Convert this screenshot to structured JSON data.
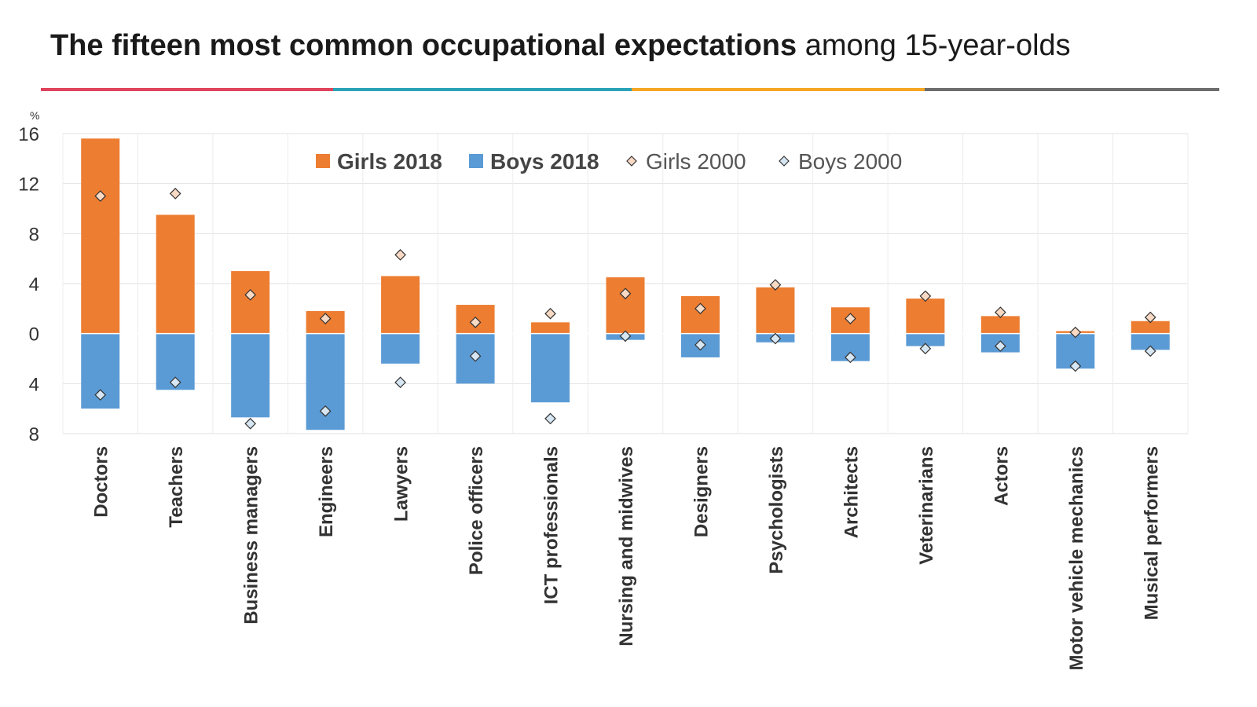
{
  "title": {
    "bold": "The fifteen most common occupational expectations",
    "normal": " among 15-year-olds"
  },
  "rule_colors": [
    "#e0435c",
    "#2aa3b8",
    "#f5a623",
    "#6d6d6d"
  ],
  "chart_data": {
    "type": "bar",
    "unit_label": "%",
    "categories": [
      "Doctors",
      "Teachers",
      "Business managers",
      "Engineers",
      "Lawyers",
      "Police officers",
      "ICT professionals",
      "Nursing and midwives",
      "Designers",
      "Psychologists",
      "Architects",
      "Veterinarians",
      "Actors",
      "Motor vehicle mechanics",
      "Musical performers"
    ],
    "series": [
      {
        "name": "Girls 2018",
        "kind": "bar",
        "direction": "up",
        "color": "#ed7d31",
        "values": [
          15.6,
          9.5,
          5.0,
          1.8,
          4.6,
          2.3,
          0.9,
          4.5,
          3.0,
          3.7,
          2.1,
          2.8,
          1.4,
          0.2,
          1.0
        ]
      },
      {
        "name": "Boys 2018",
        "kind": "bar",
        "direction": "down",
        "color": "#5b9bd5",
        "values": [
          6.0,
          4.5,
          6.7,
          7.7,
          2.4,
          4.0,
          5.5,
          0.5,
          1.9,
          0.7,
          2.2,
          1.0,
          1.5,
          2.8,
          1.3
        ]
      },
      {
        "name": "Girls 2000",
        "kind": "marker",
        "direction": "up",
        "color": "#f8d9c4",
        "values": [
          11.0,
          11.2,
          3.1,
          1.2,
          6.3,
          0.9,
          1.6,
          3.2,
          2.0,
          3.9,
          1.2,
          3.0,
          1.7,
          0.1,
          1.3
        ]
      },
      {
        "name": "Boys 2000",
        "kind": "marker",
        "direction": "down",
        "color": "#d6e6f2",
        "values": [
          4.9,
          3.9,
          7.2,
          6.2,
          3.9,
          1.8,
          6.8,
          0.2,
          0.9,
          0.4,
          1.9,
          1.2,
          1.0,
          2.6,
          1.4
        ]
      }
    ],
    "ylim": [
      -8,
      16
    ],
    "yticks": [
      16,
      12,
      8,
      4,
      0,
      -4,
      -8
    ],
    "ytick_labels": [
      "16",
      "12",
      "8",
      "4",
      "0",
      "4",
      "8"
    ],
    "legend_position": "top-center",
    "grid": true
  }
}
